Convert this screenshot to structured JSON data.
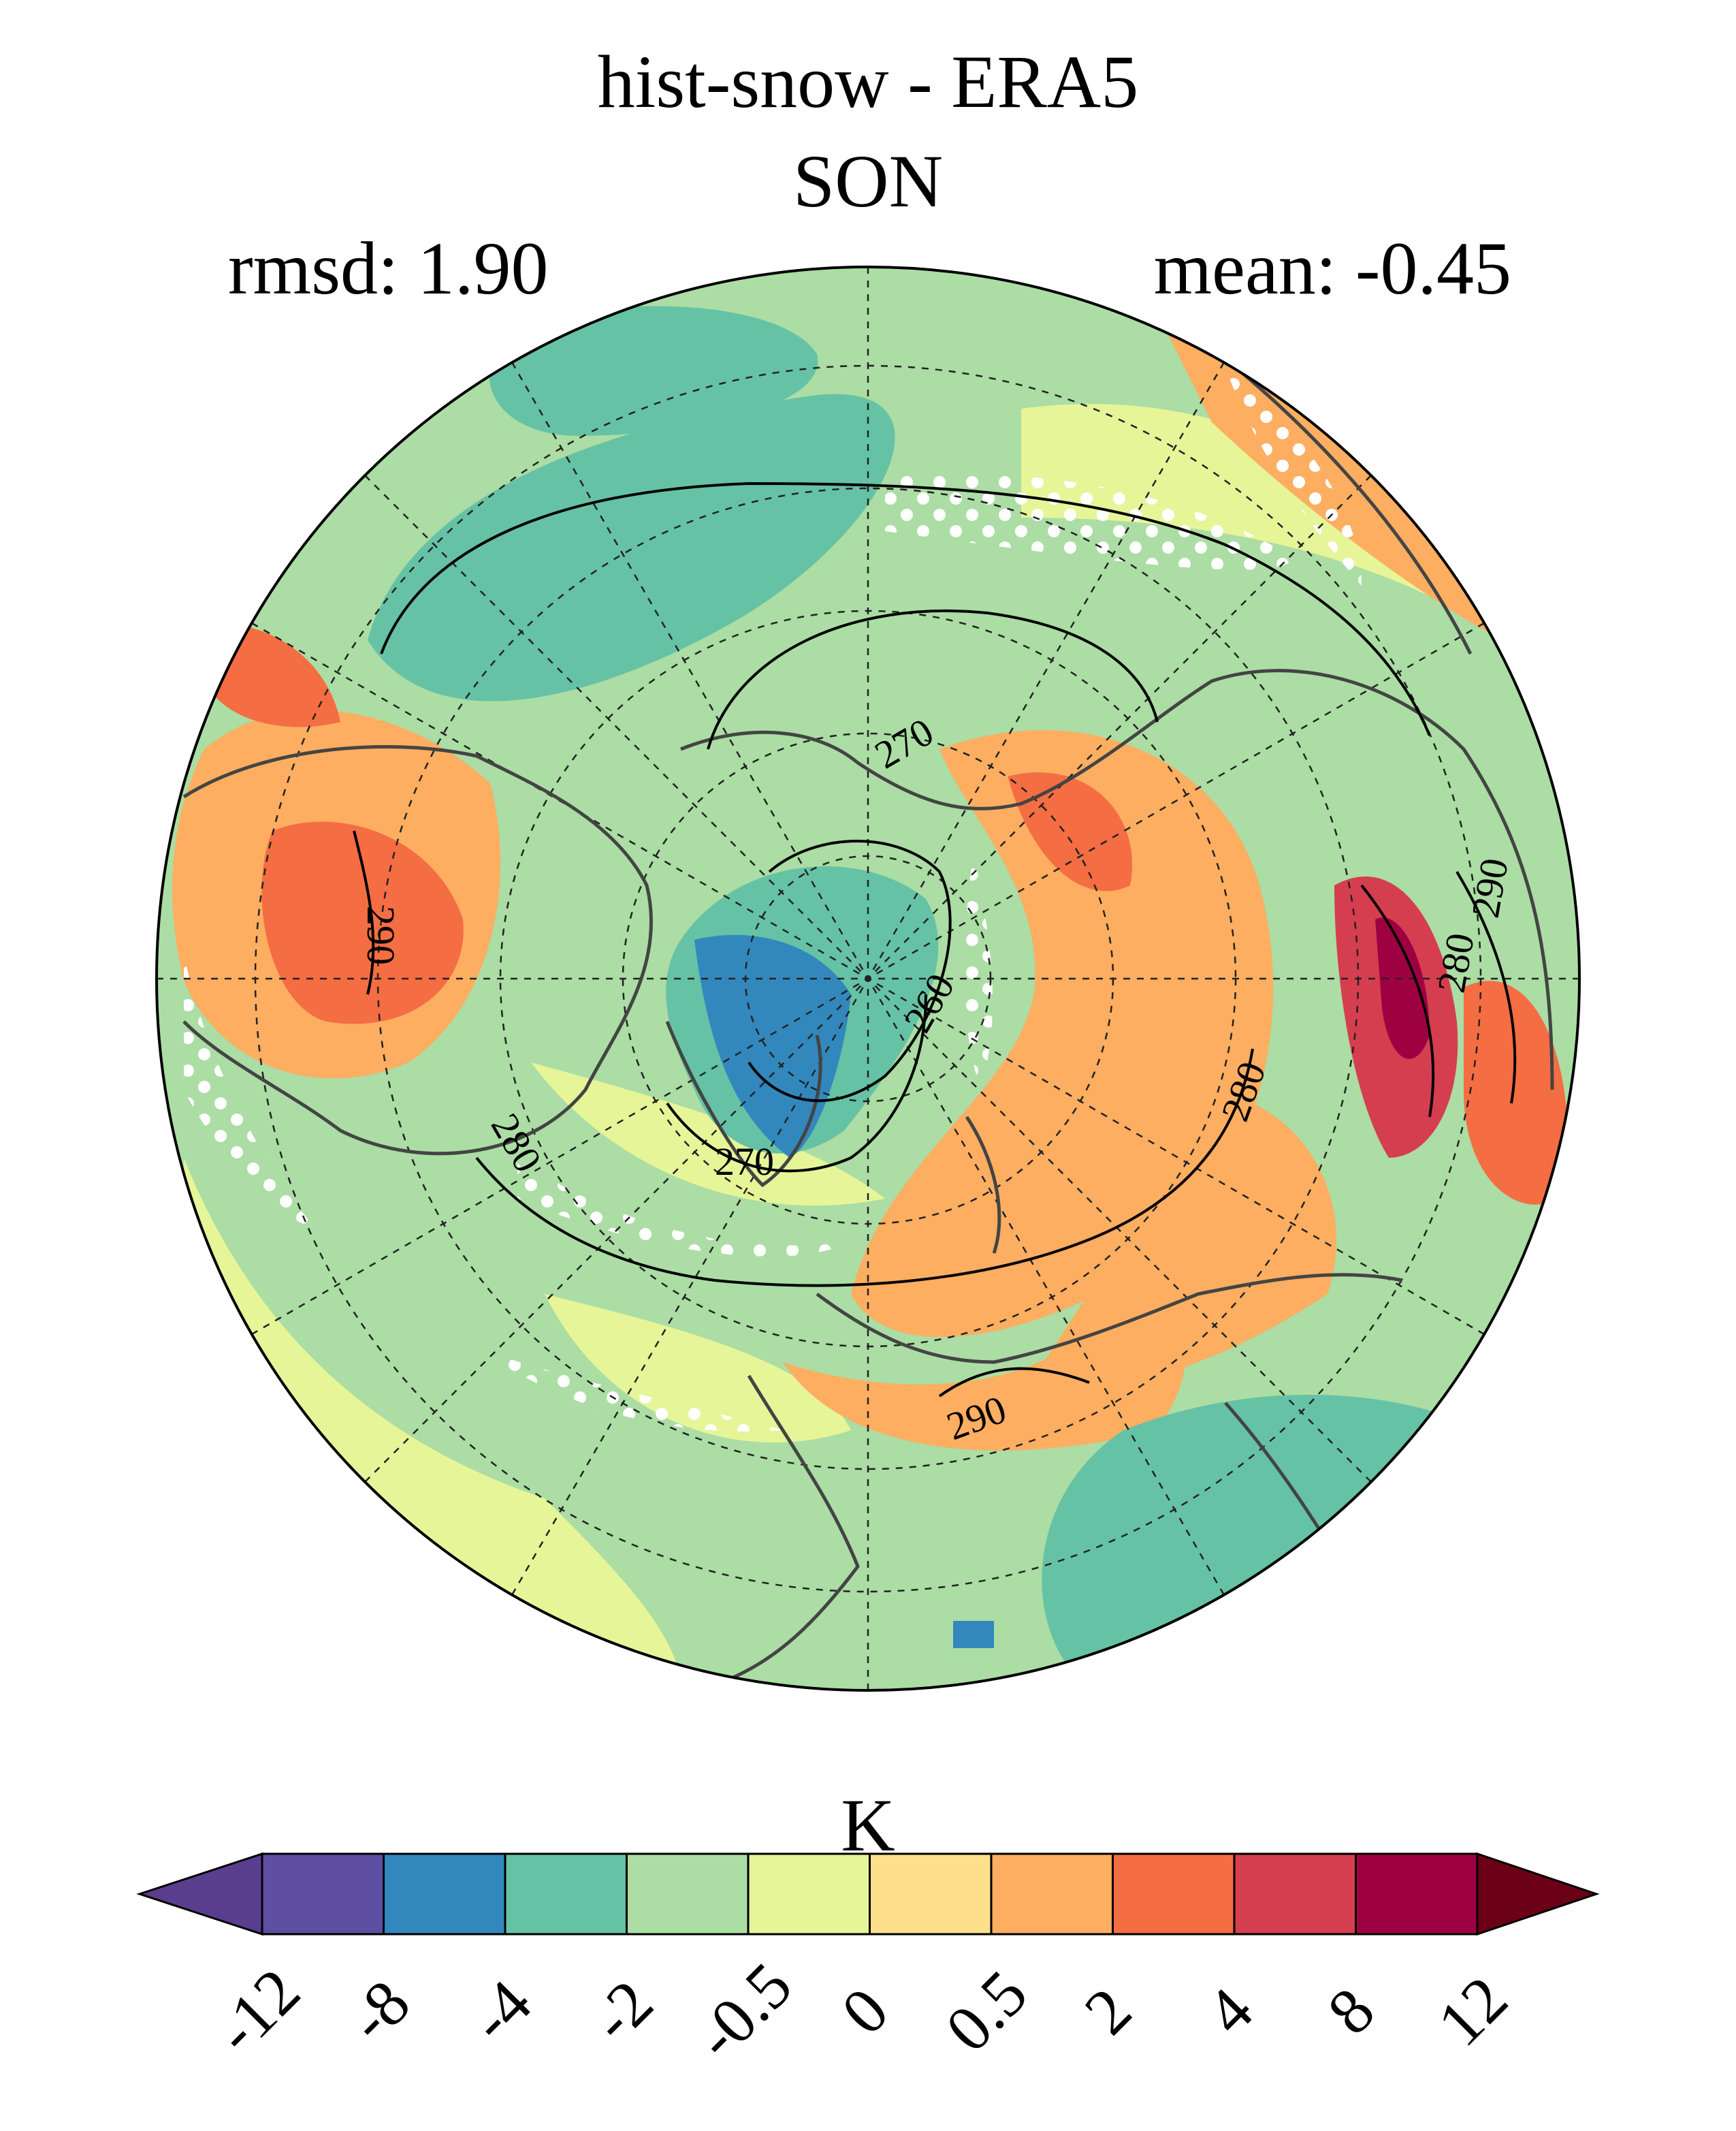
{
  "title": {
    "line1": "hist-snow - ERA5",
    "line2": "SON"
  },
  "stats": {
    "rmsd_text": "rmsd: 1.90",
    "mean_text": "mean: -0.45"
  },
  "map": {
    "projection": "north polar stereographic",
    "variable_units": "K",
    "contour_labels": [
      {
        "text": "270",
        "rot": -30
      },
      {
        "text": "290",
        "rot": 90
      },
      {
        "text": "260",
        "rot": -60
      },
      {
        "text": "270",
        "rot": 0
      },
      {
        "text": "280",
        "rot": 60
      },
      {
        "text": "280",
        "rot": -70
      },
      {
        "text": "290",
        "rot": -20
      },
      {
        "text": "280",
        "rot": -80
      },
      {
        "text": "290",
        "rot": -80
      }
    ],
    "stippling": "white dots mark significant differences"
  },
  "colorbar": {
    "label": "K",
    "ticks": [
      "-12",
      "-8",
      "-4",
      "-2",
      "-0.5",
      "0",
      "0.5",
      "2",
      "4",
      "8",
      "12"
    ],
    "colors": [
      "#5e4fa2",
      "#3288bd",
      "#66c2a5",
      "#abdda4",
      "#e6f598",
      "#fee08b",
      "#fdae61",
      "#f46d43",
      "#d53e4f",
      "#9e0142"
    ],
    "under_color": "#5a3e8e",
    "over_color": "#6b0016"
  }
}
